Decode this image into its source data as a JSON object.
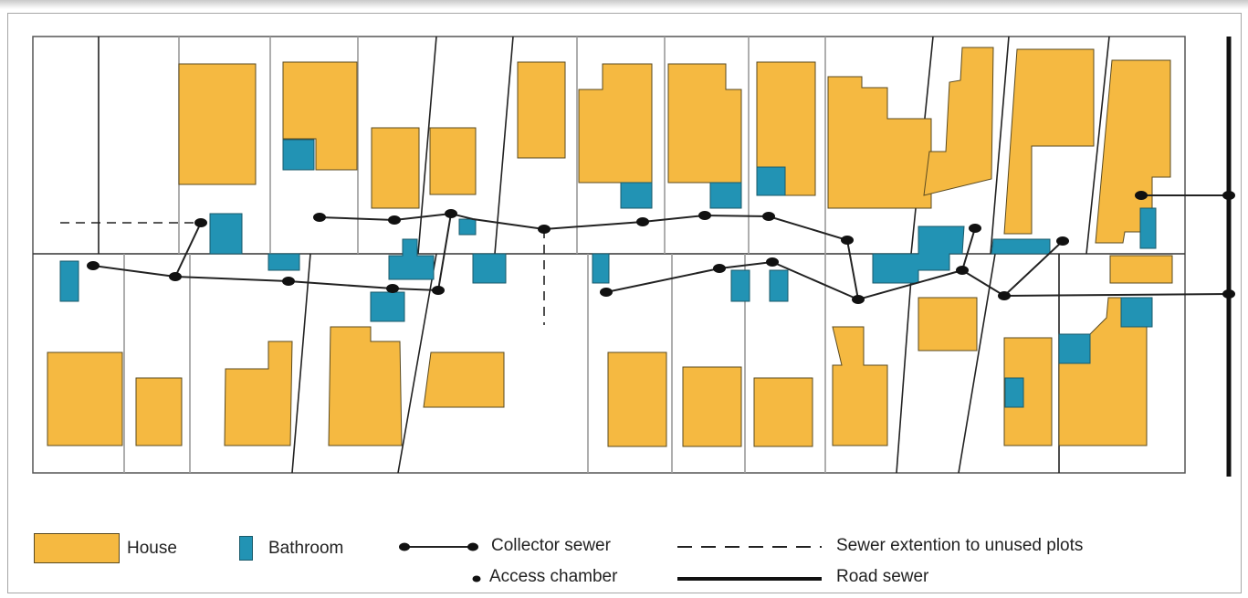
{
  "colors": {
    "house": "#f5b941",
    "bathroom": "#2293b4",
    "plot_line": "#9a9a9a",
    "sewer": "#222222"
  },
  "legend": {
    "house": "House",
    "bathroom": "Bathroom",
    "collector_sewer": "Collector sewer",
    "access_chamber": "Access chamber",
    "sewer_extension": "Sewer extention to unused plots",
    "road_sewer": "Road sewer"
  }
}
